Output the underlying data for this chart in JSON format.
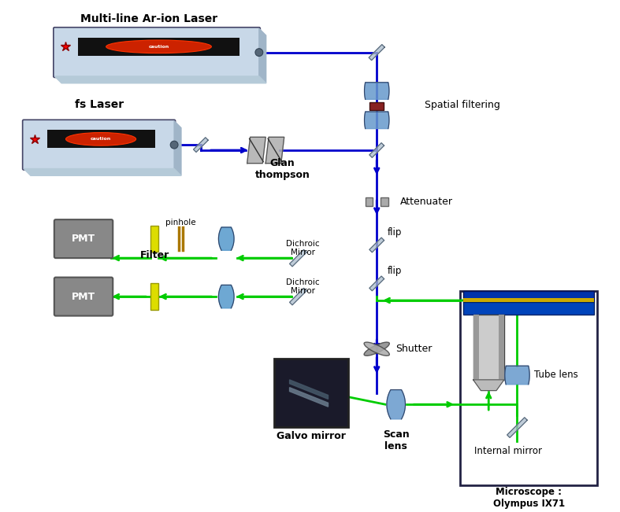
{
  "bg_color": "#ffffff",
  "blue": "#0000cc",
  "green": "#00cc00",
  "mirror_color": "#aabbcc",
  "lens_color": "#5599cc",
  "laser_label1": "Multi-line Ar-ion Laser",
  "laser_label2": "fs Laser",
  "label_spatial": "Spatial filtering",
  "label_attenuater": "Attenuater",
  "label_glan": "Glan\nthompson",
  "label_pinhole": "pinhole",
  "label_filter": "Filter",
  "label_dichroic1": "Dichroic\nMirror",
  "label_dichroic2": "Dichroic\nMirror",
  "label_flip": "flip",
  "label_shutter": "Shutter",
  "label_galvo": "Galvo mirror",
  "label_scan": "Scan\nlens",
  "label_tube": "Tube lens",
  "label_internal": "Internal mirror",
  "label_microscope": "Microscope :\nOlympus IX71",
  "label_pmt": "PMT"
}
